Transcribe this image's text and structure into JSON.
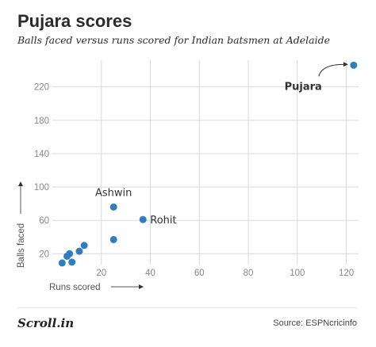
{
  "title": "Pujara scores",
  "subtitle": "Balls faced versus runs scored for Indian batsmen at Adelaide",
  "source": "Source: ESPNcricinfo",
  "logo_text": "Scroll.in",
  "colors": {
    "point": "#2f7ec1",
    "grid": "#d9d9d9",
    "tick_text": "#888888",
    "label_text": "#333333"
  },
  "chart_data": {
    "type": "scatter",
    "title": "Pujara scores",
    "subtitle": "Balls faced versus runs scored for Indian batsmen at Adelaide",
    "xlabel": "Runs scored",
    "ylabel": "Balls faced",
    "xlim": [
      0,
      125
    ],
    "ylim": [
      7,
      252
    ],
    "x_ticks": [
      20,
      40,
      60,
      80,
      100,
      120
    ],
    "y_ticks": [
      20,
      60,
      100,
      140,
      180,
      220
    ],
    "grid": true,
    "points": [
      {
        "x": 123,
        "y": 246,
        "label": "Pujara"
      },
      {
        "x": 25,
        "y": 76,
        "label": "Ashwin"
      },
      {
        "x": 37,
        "y": 61,
        "label": "Rohit"
      },
      {
        "x": 25,
        "y": 37,
        "label": ""
      },
      {
        "x": 13,
        "y": 30,
        "label": ""
      },
      {
        "x": 11,
        "y": 23,
        "label": ""
      },
      {
        "x": 7,
        "y": 20,
        "label": ""
      },
      {
        "x": 6,
        "y": 17,
        "label": ""
      },
      {
        "x": 8,
        "y": 10,
        "label": ""
      },
      {
        "x": 4,
        "y": 9,
        "label": ""
      }
    ]
  }
}
